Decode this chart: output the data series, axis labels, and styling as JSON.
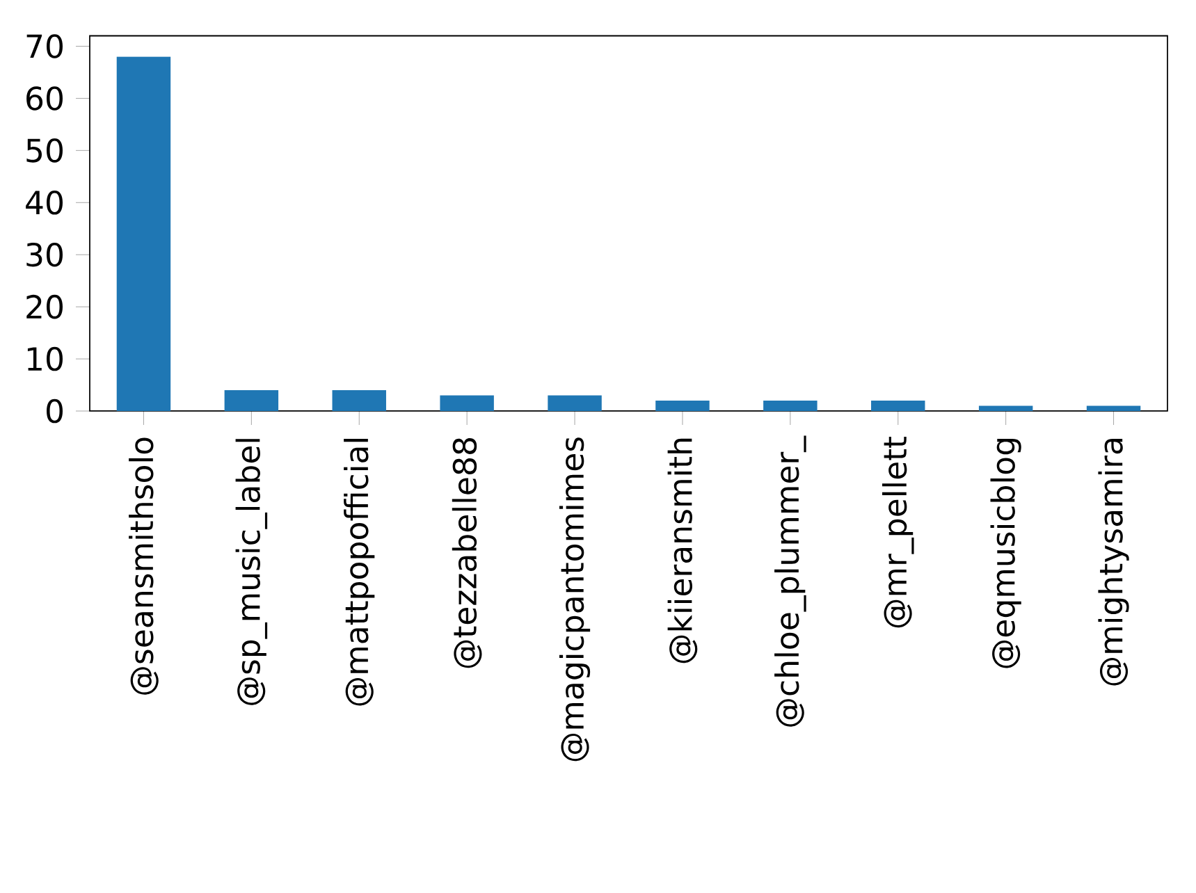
{
  "chart_data": {
    "type": "bar",
    "categories": [
      "@seansmithsolo",
      "@sp_music_label",
      "@mattpopofficial",
      "@tezzabelle88",
      "@magicpantomimes",
      "@kiieransmith",
      "@chloe_plummer_",
      "@mr_pellett",
      "@eqmusicblog",
      "@mightysamira"
    ],
    "values": [
      68,
      4,
      4,
      3,
      3,
      2,
      2,
      2,
      1,
      1
    ],
    "color": "#1f77b4",
    "ylim": [
      0,
      72
    ],
    "yticks": [
      0,
      10,
      20,
      30,
      40,
      50,
      60,
      70
    ]
  }
}
